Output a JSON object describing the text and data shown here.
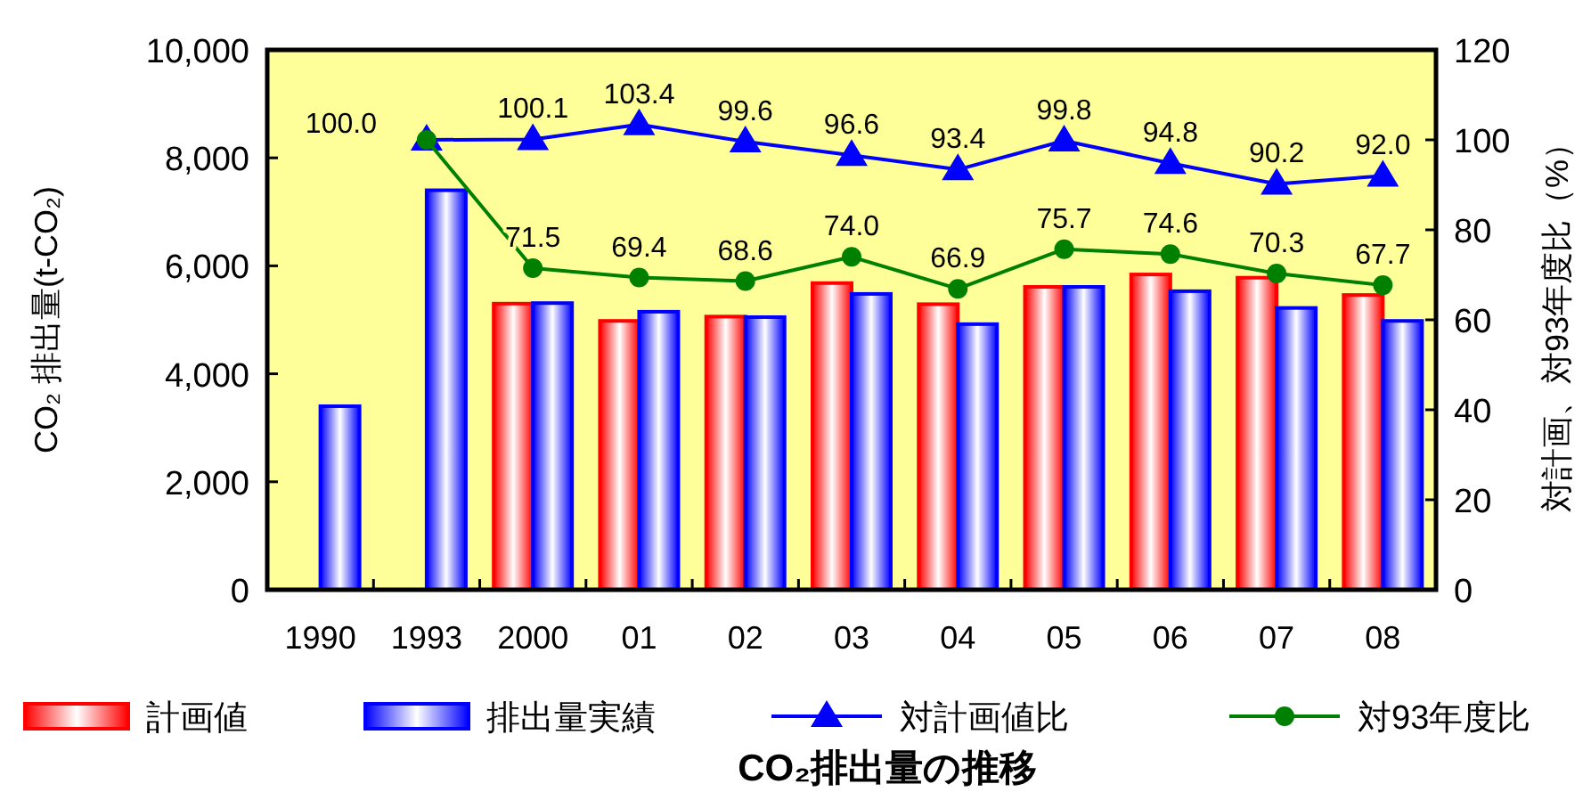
{
  "chart_data": {
    "type": "bar",
    "title": "CO₂排出量の推移",
    "ylabel": "CO₂ 排出量(t-CO₂)",
    "y2label": "対計画、対93年度比（%）",
    "categories": [
      "1990",
      "1993",
      "2000",
      "01",
      "02",
      "03",
      "04",
      "05",
      "06",
      "07",
      "08"
    ],
    "series": [
      {
        "name": "計画値",
        "color": "#ff0000",
        "values": [
          null,
          null,
          5300,
          4980,
          5060,
          5680,
          5290,
          5610,
          5840,
          5780,
          5460
        ]
      },
      {
        "name": "排出量実績",
        "color": "#0000ff",
        "values": [
          3400,
          7400,
          5310,
          5150,
          5050,
          5480,
          4920,
          5610,
          5530,
          5220,
          4980
        ]
      },
      {
        "name": "対計画値比",
        "type": "line",
        "axis": "y2",
        "color": "#0000ff",
        "marker": "triangle",
        "values": [
          null,
          100.0,
          100.1,
          103.4,
          99.6,
          96.6,
          93.4,
          99.8,
          94.8,
          90.2,
          92.0
        ],
        "value_labels": [
          null,
          null,
          "100.1",
          "103.4",
          "99.6",
          "96.6",
          "93.4",
          "99.8",
          "94.8",
          "90.2",
          "92.0"
        ]
      },
      {
        "name": "対93年度比",
        "type": "line",
        "axis": "y2",
        "color": "#008000",
        "marker": "circle",
        "values": [
          null,
          100.0,
          71.5,
          69.4,
          68.6,
          74.0,
          66.9,
          75.7,
          74.6,
          70.3,
          67.7
        ],
        "value_labels": [
          null,
          "100.0",
          "71.5",
          "69.4",
          "68.6",
          "74.0",
          "66.9",
          "75.7",
          "74.6",
          "70.3",
          "67.7"
        ]
      }
    ],
    "ylim": [
      0,
      10000
    ],
    "yticks": [
      {
        "value": 0,
        "label": "0"
      },
      {
        "value": 2000,
        "label": "2,000"
      },
      {
        "value": 4000,
        "label": "4,000"
      },
      {
        "value": 6000,
        "label": "6,000"
      },
      {
        "value": 8000,
        "label": "8,000"
      },
      {
        "value": 10000,
        "label": "10,000"
      }
    ],
    "y2lim": [
      0,
      120
    ],
    "y2ticks": [
      0,
      20,
      40,
      60,
      80,
      100,
      120
    ],
    "grid": false,
    "legend": "bottom"
  }
}
